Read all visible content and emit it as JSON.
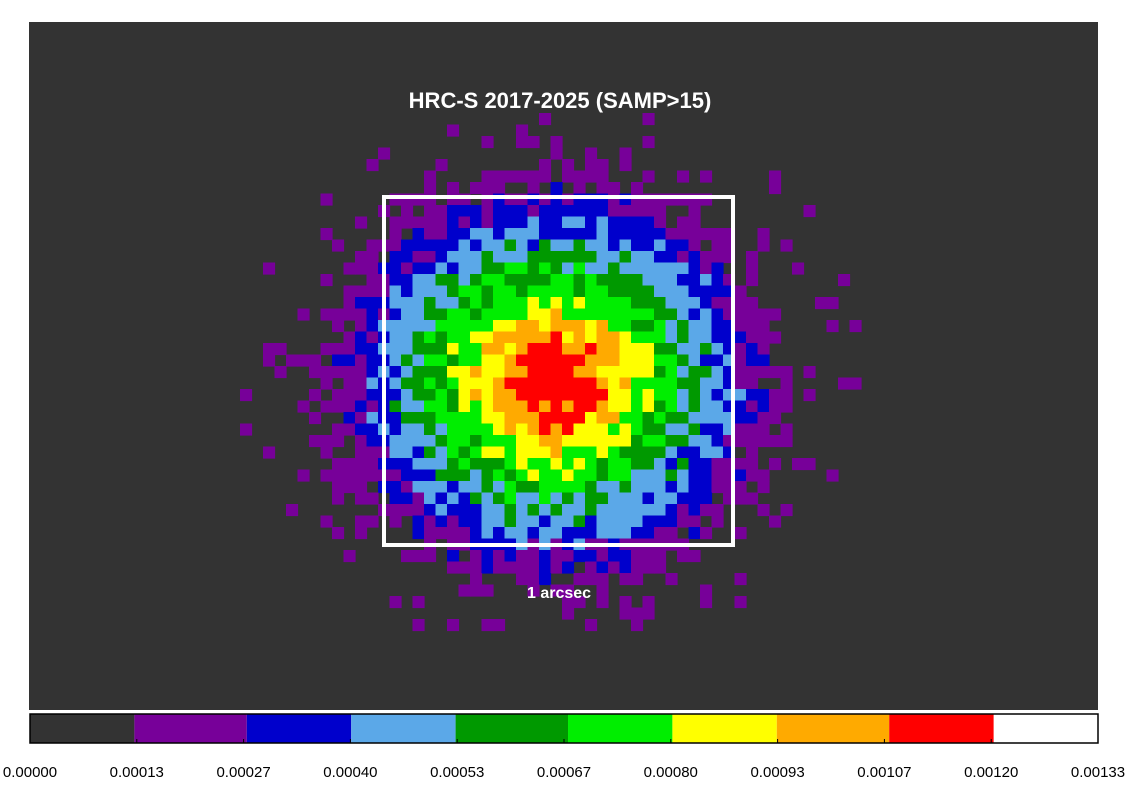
{
  "chart_data": {
    "type": "heatmap",
    "title": "HRC-S 2017-2025 (SAMP>15)",
    "scale_annotation": "1 arcsec",
    "background_color": "#333333",
    "box_color": "#ffffff",
    "grid": false,
    "colorbar": {
      "position": "bottom",
      "min": 0.0,
      "max": 0.00133,
      "bins": [
        {
          "from": 0.0,
          "to": 0.00013,
          "color": "#333333"
        },
        {
          "from": 0.00013,
          "to": 0.00027,
          "color": "#770099"
        },
        {
          "from": 0.00027,
          "to": 0.0004,
          "color": "#0000cc"
        },
        {
          "from": 0.0004,
          "to": 0.00053,
          "color": "#5ba8e8"
        },
        {
          "from": 0.00053,
          "to": 0.00067,
          "color": "#009900"
        },
        {
          "from": 0.00067,
          "to": 0.0008,
          "color": "#00ee00"
        },
        {
          "from": 0.0008,
          "to": 0.00093,
          "color": "#ffff00"
        },
        {
          "from": 0.00093,
          "to": 0.00107,
          "color": "#ffaa00"
        },
        {
          "from": 0.00107,
          "to": 0.0012,
          "color": "#ff0000"
        }
      ],
      "tick_labels": [
        "0.00000",
        "0.00013",
        "0.00027",
        "0.00040",
        "0.00053",
        "0.00067",
        "0.00080",
        "0.00093",
        "0.00107",
        "0.00120",
        "0.00133"
      ]
    }
  }
}
